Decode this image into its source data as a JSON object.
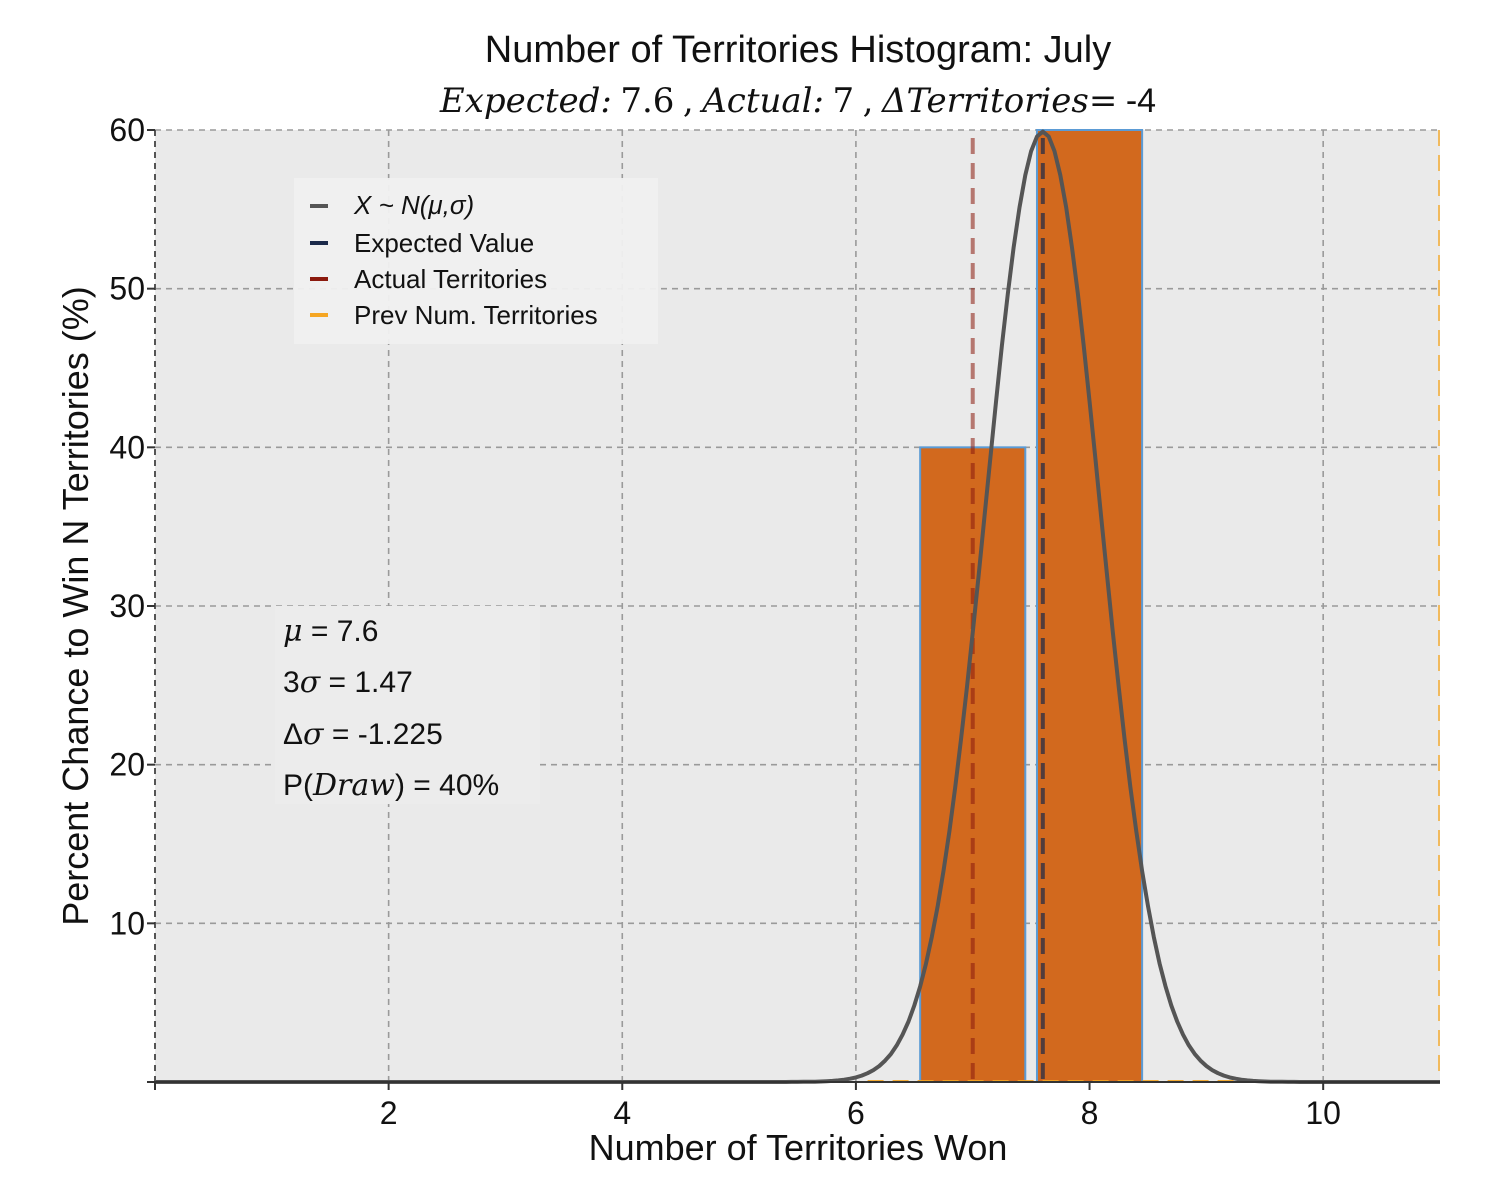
{
  "chart_data": {
    "type": "bar",
    "title": "Number of Territories Histogram: July",
    "subtitle": {
      "expected_label": "Expected:",
      "expected_value": "7.6",
      "actual_label": "Actual:",
      "actual_value": "7",
      "delta_label": "ΔTerritories",
      "delta_value": "-4",
      "sep": ",",
      "eq": "="
    },
    "xlabel": "Number of Territories Won",
    "ylabel": "Percent Chance to Win N Territories (%)",
    "xlim": [
      0,
      11
    ],
    "ylim": [
      0,
      60
    ],
    "x_ticks": [
      2,
      4,
      6,
      8,
      10
    ],
    "y_ticks": [
      10,
      20,
      30,
      40,
      50,
      60
    ],
    "grid": true,
    "bars": [
      {
        "x": 7,
        "value": 40
      },
      {
        "x": 8,
        "value": 60
      }
    ],
    "normal_curve": {
      "mu": 7.6,
      "sigma": 0.49,
      "peak": 59.9
    },
    "vlines": {
      "expected_value": 7.6,
      "actual_territories": 7,
      "prev_num_territories": 11
    },
    "legend": {
      "placement": "upper-left",
      "entries": [
        {
          "label": "X ~ N(μ,σ)",
          "color": "#555555"
        },
        {
          "label": "Expected Value",
          "color": "#1b2a4a"
        },
        {
          "label": "Actual Territories",
          "color": "#8b1a0e"
        },
        {
          "label": "Prev Num. Territories",
          "color": "#f5a623"
        }
      ]
    },
    "stats_box": {
      "mu_sym": "μ",
      "mu_text": " = 7.6",
      "sigma3_pre": "3",
      "sigma_sym": "σ",
      "sigma3_text": " = 1.47",
      "dsigma_pre": "Δ",
      "dsigma_text": " = -1.225",
      "pdraw_pre": "P(",
      "pdraw_sym": "Draw",
      "pdraw_text": ") = 40%"
    },
    "colors": {
      "bar_fill": "#d2691e",
      "bar_edge": "#5b9bd5",
      "curve": "#555555",
      "expected": "#1b2a4a",
      "actual": "#8b1a0e",
      "prev": "#f5a623",
      "plot_bg": "#eaeaea"
    }
  }
}
